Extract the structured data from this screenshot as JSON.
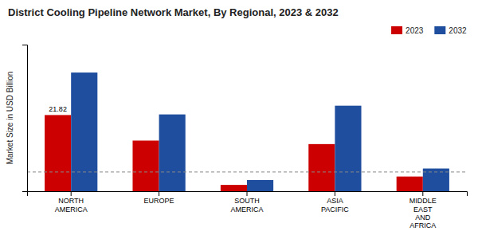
{
  "chart_data": {
    "type": "bar",
    "title": "District Cooling Pipeline Network Market, By Regional, 2023 & 2032",
    "ylabel": "Market Size in USD Billion",
    "categories": [
      "NORTH\nAMERICA",
      "EUROPE",
      "SOUTH\nAMERICA",
      "ASIA\nPACIFIC",
      "MIDDLE\nEAST\nAND\nAFRICA"
    ],
    "series": [
      {
        "name": "2023",
        "color": "#cc0000",
        "values": [
          21.82,
          14.5,
          1.8,
          13.5,
          4.2
        ]
      },
      {
        "name": "2032",
        "color": "#1f4e9e",
        "values": [
          34.0,
          22.0,
          3.2,
          24.5,
          6.5
        ]
      }
    ],
    "annotations": [
      {
        "text": "21.82",
        "category": "NORTH\nAMERICA",
        "series": "2023"
      }
    ],
    "hline": 5.5,
    "ylim": [
      0,
      42
    ],
    "yticks": [],
    "tick_labels": "x",
    "grid": false,
    "legend": "upper right"
  }
}
